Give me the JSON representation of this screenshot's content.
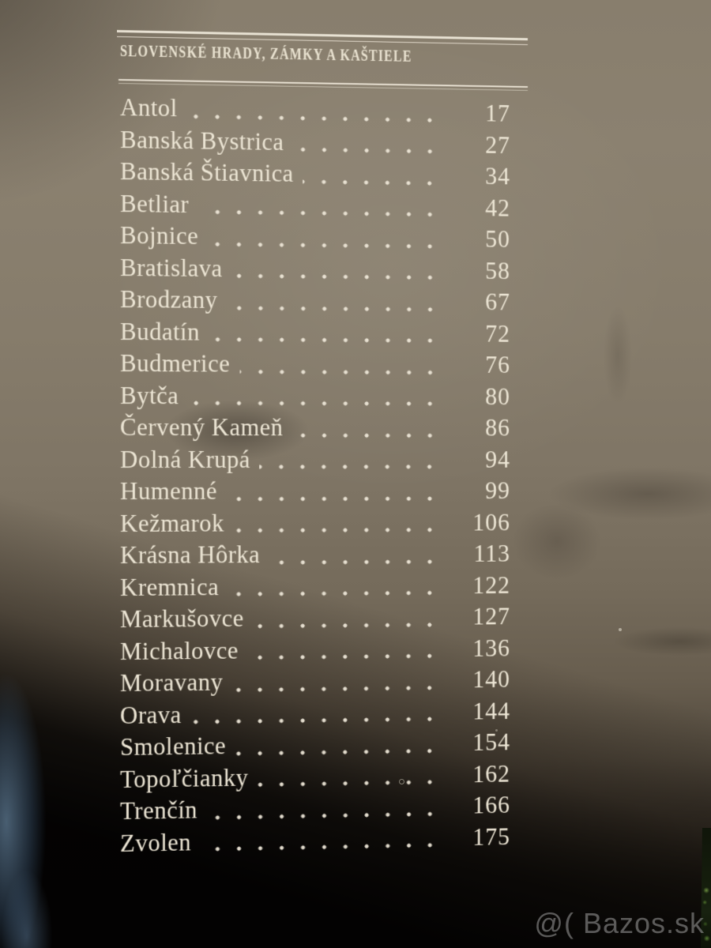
{
  "header": {
    "series_title": "SLOVENSKÉ HRADY, ZÁMKY A KAŠTIELE"
  },
  "toc": {
    "entries": [
      {
        "name": "Antol",
        "page": "17"
      },
      {
        "name": "Banská Bystrica",
        "page": "27"
      },
      {
        "name": "Banská Štiavnica",
        "page": "34"
      },
      {
        "name": "Betliar",
        "page": "42"
      },
      {
        "name": "Bojnice",
        "page": "50"
      },
      {
        "name": "Bratislava",
        "page": "58"
      },
      {
        "name": "Brodzany",
        "page": "67"
      },
      {
        "name": "Budatín",
        "page": "72"
      },
      {
        "name": "Budmerice",
        "page": "76"
      },
      {
        "name": "Bytča",
        "page": "80"
      },
      {
        "name": "Červený Kameň",
        "page": "86"
      },
      {
        "name": "Dolná Krupá",
        "page": "94"
      },
      {
        "name": "Humenné",
        "page": "99"
      },
      {
        "name": "Kežmarok",
        "page": "106"
      },
      {
        "name": "Krásna Hôrka",
        "page": "113"
      },
      {
        "name": "Kremnica",
        "page": "122"
      },
      {
        "name": "Markušovce",
        "page": "127"
      },
      {
        "name": "Michalovce",
        "page": "136"
      },
      {
        "name": "Moravany",
        "page": "140"
      },
      {
        "name": "Orava",
        "page": "144"
      },
      {
        "name": "Smolenice",
        "page": "154"
      },
      {
        "name": "Topoľčianky",
        "page": "162"
      },
      {
        "name": "Trenčín",
        "page": "166"
      },
      {
        "name": "Zvolen",
        "page": "175"
      }
    ]
  },
  "watermark": {
    "text": "@( Bazos.sk"
  },
  "colors": {
    "ink": "#ece5d4",
    "page_top": "#8b8170",
    "page_bottom": "#070605",
    "watermark_gray": "#a0a0a0",
    "reflection_blue": "#7ba4c9",
    "foliage_green": "#41632a"
  }
}
